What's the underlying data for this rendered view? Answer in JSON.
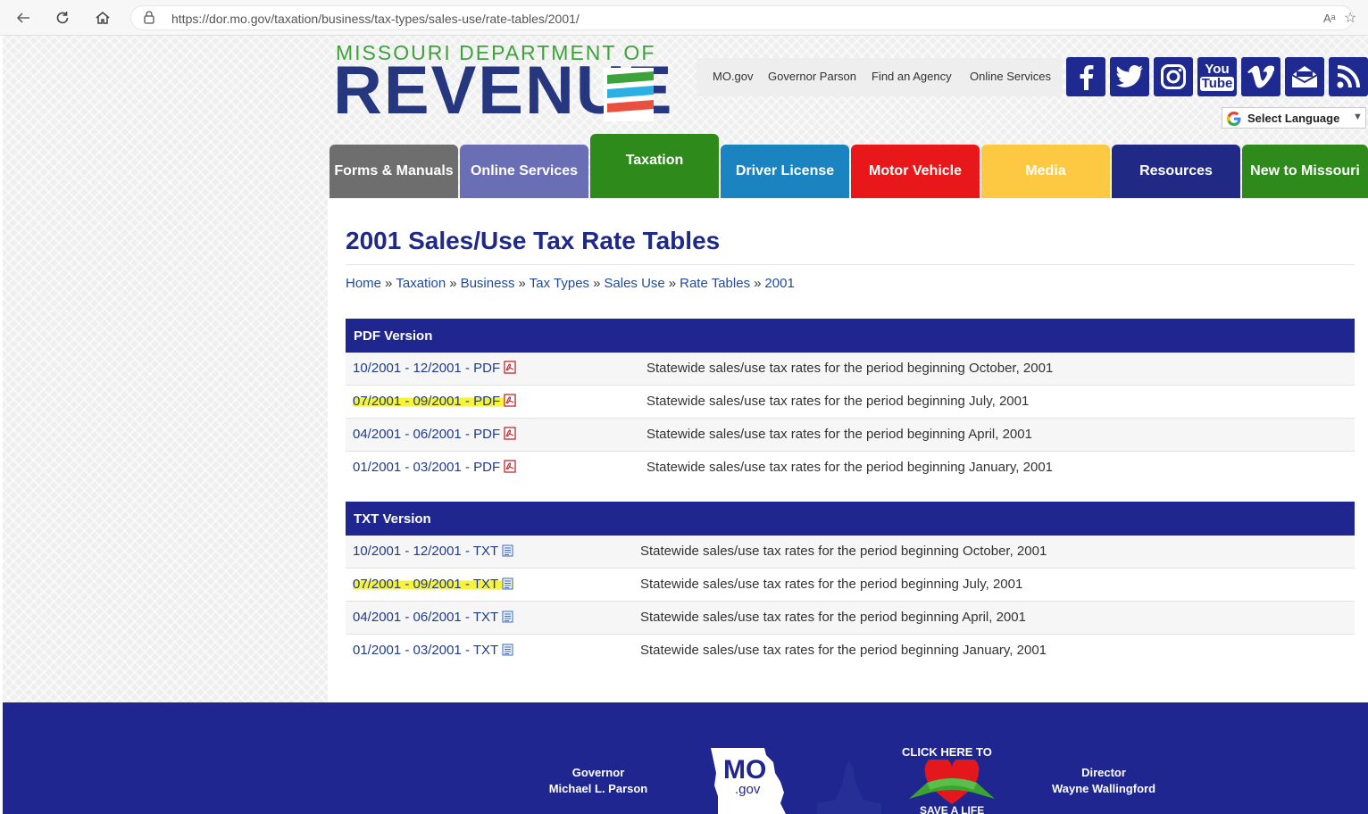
{
  "browser": {
    "url": "https://dor.mo.gov/taxation/business/tax-types/sales-use/rate-tables/2001/",
    "back_icon": "back-arrow-icon",
    "refresh_icon": "refresh-icon",
    "home_icon": "home-icon",
    "lock_icon": "lock-icon",
    "read_aloud": "Aᵃ",
    "favorite": "☆"
  },
  "header": {
    "logo_top": "MISSOURI DEPARTMENT OF",
    "logo_main": "REVENUE",
    "util_links": [
      "MO.gov",
      "Governor Parson",
      "Find an Agency",
      "Online Services"
    ],
    "social": [
      "facebook-icon",
      "twitter-icon",
      "instagram-icon",
      "youtube-icon",
      "vimeo-icon",
      "email-icon",
      "rss-icon"
    ],
    "youtube_line1": "You",
    "youtube_line2": "Tube",
    "language": "Select Language",
    "language_arrow": "▼"
  },
  "nav": {
    "tabs": [
      {
        "label": "Forms & Manuals",
        "color": "#6e6e6e"
      },
      {
        "label": "Online Services",
        "color": "#6a6fb5"
      },
      {
        "label": "Taxation",
        "color": "#2e8a1a"
      },
      {
        "label": "Driver License",
        "color": "#1b83c0"
      },
      {
        "label": "Motor Vehicle",
        "color": "#e8171a"
      },
      {
        "label": "Media",
        "color": "#fdc842"
      },
      {
        "label": "Resources",
        "color": "#202a85"
      },
      {
        "label": "New to Missouri",
        "color": "#2e8a1a"
      }
    ],
    "active": "Taxation"
  },
  "page": {
    "title": "2001 Sales/Use Tax Rate Tables",
    "breadcrumb": [
      "Home",
      "Taxation",
      "Business",
      "Tax Types",
      "Sales Use",
      "Rate Tables",
      "2001"
    ],
    "breadcrumb_sep": "»"
  },
  "pdf_table": {
    "heading": "PDF Version",
    "rows": [
      {
        "link": "10/2001 - 12/2001 - PDF",
        "desc": "Statewide sales/use tax rates for the period beginning October, 2001",
        "highlighted": false
      },
      {
        "link": "07/2001 - 09/2001 - PDF",
        "desc": "Statewide sales/use tax rates for the period beginning July, 2001",
        "highlighted": true
      },
      {
        "link": "04/2001 - 06/2001 - PDF",
        "desc": "Statewide sales/use tax rates for the period beginning April, 2001",
        "highlighted": false
      },
      {
        "link": "01/2001 - 03/2001 - PDF",
        "desc": "Statewide sales/use tax rates for the period beginning January, 2001",
        "highlighted": false
      }
    ]
  },
  "txt_table": {
    "heading": "TXT Version",
    "rows": [
      {
        "link": "10/2001 - 12/2001 - TXT",
        "desc": "Statewide sales/use tax rates for the period beginning October, 2001",
        "highlighted": false
      },
      {
        "link": "07/2001 - 09/2001 - TXT",
        "desc": "Statewide sales/use tax rates for the period beginning July, 2001",
        "highlighted": true
      },
      {
        "link": "04/2001 - 06/2001 - TXT",
        "desc": "Statewide sales/use tax rates for the period beginning April, 2001",
        "highlighted": false
      },
      {
        "link": "01/2001 - 03/2001 - TXT",
        "desc": "Statewide sales/use tax rates for the period beginning January, 2001",
        "highlighted": false
      }
    ]
  },
  "footer": {
    "governor_title": "Governor",
    "governor_name": "Michael L. Parson",
    "mo_text": "MO",
    "gov_text": ".gov",
    "click_here": "CLICK HERE TO",
    "save_life": "SAVE A LIFE",
    "director_title": "Director",
    "director_name": "Wayne Wallingford"
  },
  "colors": {
    "navy": "#1f2690",
    "highlight": "#f6f33a",
    "link": "#1f3c8c"
  }
}
